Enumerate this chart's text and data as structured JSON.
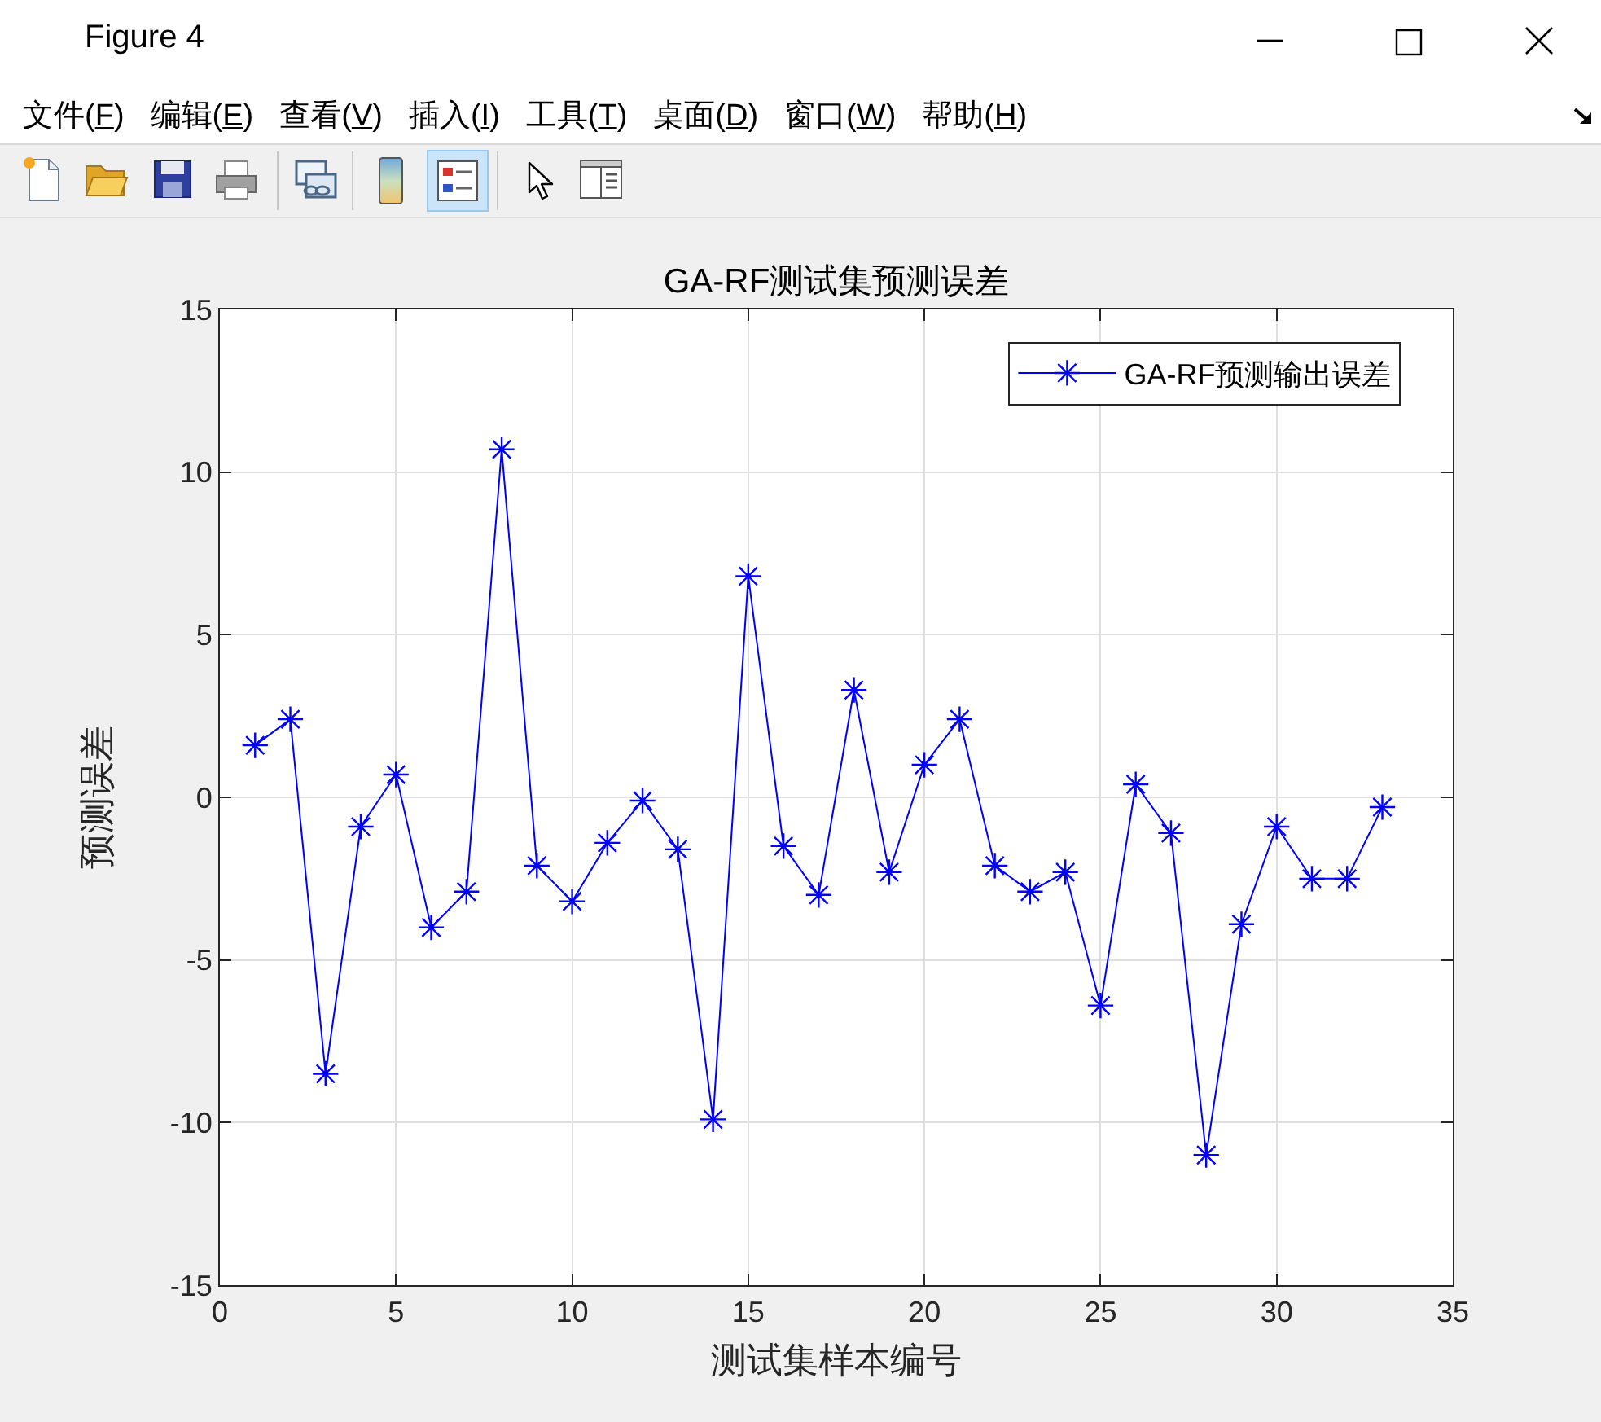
{
  "chart_data": {
    "type": "line",
    "title": "GA-RF测试集预测误差",
    "xlabel": "测试集样本编号",
    "ylabel": "预测误差",
    "annotations": [
      "Figure 4",
      "文件(F)",
      "编辑(E)",
      "查看(V)",
      "插入(I)",
      "工具(T)",
      "桌面(D)",
      "窗口(W)",
      "帮助(H)"
    ],
    "x": [
      1,
      2,
      3,
      4,
      5,
      6,
      7,
      8,
      9,
      10,
      11,
      12,
      13,
      14,
      15,
      16,
      17,
      18,
      19,
      20,
      21,
      22,
      23,
      24,
      25,
      26,
      27,
      28,
      29,
      30,
      31,
      32,
      33
    ],
    "series": [
      {
        "name": "GA-RF预测输出误差",
        "color": "#0000ff",
        "values": [
          1.6,
          2.4,
          -8.5,
          -0.9,
          0.7,
          -4.0,
          -2.9,
          10.7,
          -2.1,
          -3.2,
          -1.4,
          -0.1,
          -1.6,
          -9.9,
          6.8,
          -1.5,
          -3.0,
          3.3,
          -2.3,
          1.0,
          2.4,
          -2.1,
          -2.9,
          -2.3,
          -6.4,
          0.4,
          -1.1,
          -11.0,
          -3.9,
          -0.9,
          -2.5,
          -2.5,
          -0.3
        ]
      }
    ],
    "xlim": [
      0,
      35
    ],
    "ylim": [
      -15,
      15
    ],
    "xticks": [
      0,
      5,
      10,
      15,
      20,
      25,
      30,
      35
    ],
    "yticks": [
      -15,
      -10,
      -5,
      0,
      5,
      10,
      15
    ],
    "grid": true,
    "legend": "top right",
    "marker": "cross",
    "line_style": "solid"
  }
}
